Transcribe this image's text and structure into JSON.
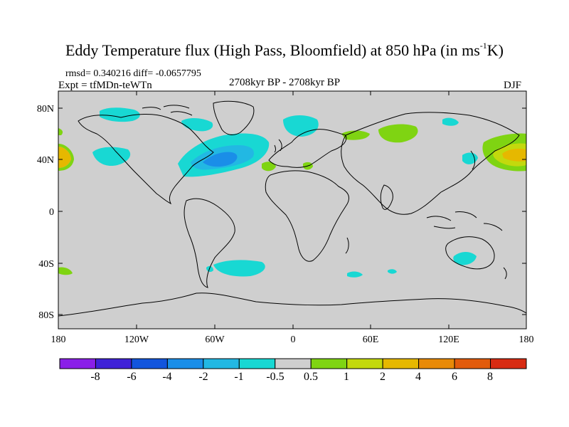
{
  "header": {
    "title_main": "Eddy Temperature flux (High Pass, Bloomfield) at 850 hPa (in ms",
    "title_sup": "-1",
    "title_end": "K)",
    "stats": "rmsd= 0.340216 diff= -0.0657795",
    "expt": "Expt = tfMDn-teWTn",
    "period": "2708kyr BP - 2708kyr BP",
    "season": "DJF"
  },
  "axes": {
    "x_ticks": [
      "180",
      "120W",
      "60W",
      "0",
      "60E",
      "120E",
      "180"
    ],
    "y_ticks": [
      "80N",
      "40N",
      "0",
      "40S",
      "80S"
    ]
  },
  "colorbar": {
    "labels": [
      "-8",
      "-6",
      "-4",
      "-2",
      "-1",
      "-0.5",
      "0.5",
      "1",
      "2",
      "4",
      "6",
      "8"
    ],
    "colors": [
      "#8a1fe8",
      "#3f22d8",
      "#1255dd",
      "#1a8ee8",
      "#22b8e3",
      "#18d8d3",
      "#cfcfcf",
      "#7fd412",
      "#c3d90d",
      "#e6b800",
      "#e88a08",
      "#e25b0c",
      "#d82b12"
    ]
  },
  "colors": {
    "land_bg": "#cfcfcf",
    "outline": "#000000"
  }
}
